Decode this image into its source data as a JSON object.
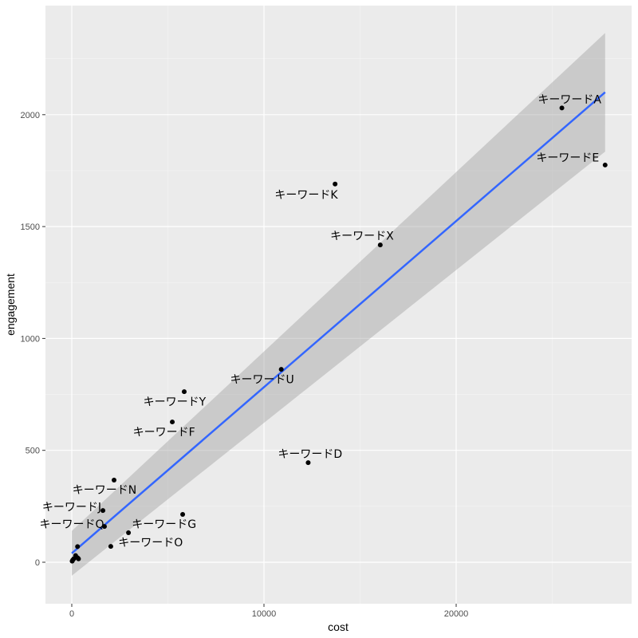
{
  "chart_data": {
    "type": "scatter",
    "title": "",
    "xlabel": "cost",
    "ylabel": "engagement",
    "xlim": [
      -1400,
      29100
    ],
    "ylim": [
      -190,
      2490
    ],
    "x_ticks": [
      0,
      10000,
      20000
    ],
    "x_tick_labels": [
      "0",
      "10000",
      "20000"
    ],
    "y_ticks": [
      0,
      500,
      1000,
      1500,
      2000
    ],
    "y_tick_labels": [
      "0",
      "500",
      "1000",
      "1500",
      "2000"
    ],
    "grid": true,
    "legend": null,
    "points": [
      {
        "label": "キーワードA",
        "x": 25500,
        "y": 2030,
        "lx": 25900,
        "ly": 2065
      },
      {
        "label": "キーワードE",
        "x": 27750,
        "y": 1775,
        "lx": 25800,
        "ly": 1805
      },
      {
        "label": "キーワードK",
        "x": 13700,
        "y": 1690,
        "lx": 12200,
        "ly": 1640
      },
      {
        "label": "キーワードX",
        "x": 16050,
        "y": 1418,
        "lx": 15100,
        "ly": 1455
      },
      {
        "label": "キーワードU",
        "x": 10900,
        "y": 862,
        "lx": 9900,
        "ly": 815
      },
      {
        "label": "キーワードY",
        "x": 5850,
        "y": 762,
        "lx": 5350,
        "ly": 715
      },
      {
        "label": "キーワードF",
        "x": 5230,
        "y": 627,
        "lx": 4800,
        "ly": 580
      },
      {
        "label": "キーワードD",
        "x": 12300,
        "y": 445,
        "lx": 12400,
        "ly": 482
      },
      {
        "label": "キーワードN",
        "x": 2200,
        "y": 367,
        "lx": 1700,
        "ly": 320
      },
      {
        "label": "キーワードJ",
        "x": 1620,
        "y": 231,
        "lx": 0,
        "ly": 245
      },
      {
        "label": "キーワードQ",
        "x": 1700,
        "y": 160,
        "lx": 0,
        "ly": 168
      },
      {
        "label": "キーワードG",
        "x": 5770,
        "y": 214,
        "lx": 4800,
        "ly": 167
      },
      {
        "label": "キーワードO",
        "x": 2950,
        "y": 132,
        "lx": 4100,
        "ly": 85
      },
      {
        "label": "",
        "x": 2030,
        "y": 71
      },
      {
        "label": "",
        "x": 300,
        "y": 70
      },
      {
        "label": "",
        "x": 200,
        "y": 30
      },
      {
        "label": "",
        "x": 300,
        "y": 20
      },
      {
        "label": "",
        "x": 100,
        "y": 15
      },
      {
        "label": "",
        "x": 50,
        "y": 10
      },
      {
        "label": "",
        "x": 20,
        "y": 5
      },
      {
        "label": "",
        "x": 350,
        "y": 15
      }
    ],
    "trend_line": {
      "method": "lm",
      "color": "#3366FF",
      "x": [
        0,
        27750
      ],
      "y": [
        40,
        2100
      ],
      "ci_upper": [
        140,
        2365
      ],
      "ci_lower": [
        -60,
        1835
      ]
    },
    "colors": {
      "panel_bg": "#EBEBEB",
      "grid_major": "#FFFFFF",
      "point": "#000000",
      "ribbon": "#999999",
      "line": "#3366FF"
    }
  }
}
